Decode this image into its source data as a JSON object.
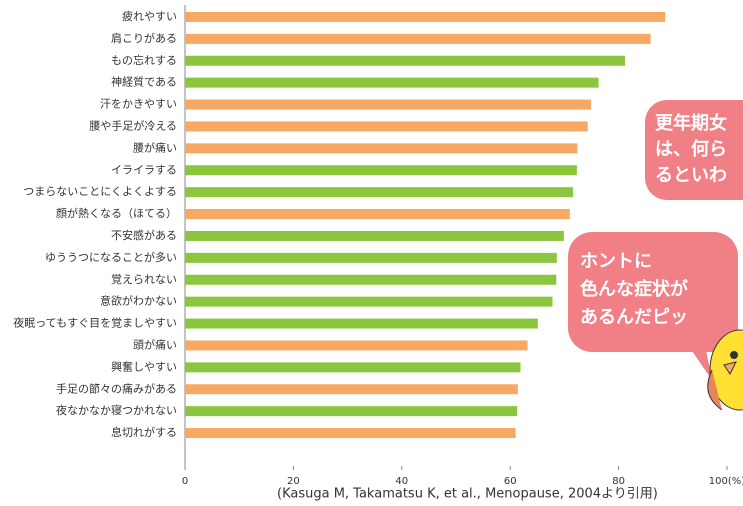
{
  "chart_data": {
    "type": "bar",
    "orientation": "horizontal",
    "categories": [
      "疲れやすい",
      "肩こりがある",
      "もの忘れする",
      "神経質である",
      "汗をかきやすい",
      "腰や手足が冷える",
      "腰が痛い",
      "イライラする",
      "つまらないことにくよくよする",
      "顔が熱くなる（ほてる）",
      "不安感がある",
      "ゆううつになることが多い",
      "覚えられない",
      "意欲がわかない",
      "夜眠ってもすぐ目を覚ましやすい",
      "頭が痛い",
      "興奮しやすい",
      "手足の節々の痛みがある",
      "夜なかなか寝つかれない",
      "息切れがする"
    ],
    "values": [
      88.6,
      85.9,
      81.2,
      76.3,
      74.9,
      74.3,
      72.4,
      72.3,
      71.6,
      71.0,
      69.9,
      68.6,
      68.5,
      67.8,
      65.1,
      63.2,
      61.9,
      61.4,
      61.3,
      61.0
    ],
    "colors": [
      "#f7a862",
      "#f7a862",
      "#8cc63f",
      "#8cc63f",
      "#f7a862",
      "#f7a862",
      "#f7a862",
      "#8cc63f",
      "#8cc63f",
      "#f7a862",
      "#8cc63f",
      "#8cc63f",
      "#8cc63f",
      "#8cc63f",
      "#8cc63f",
      "#f7a862",
      "#8cc63f",
      "#f7a862",
      "#8cc63f",
      "#f7a862"
    ],
    "xlim": [
      0,
      100
    ],
    "xticks": [
      0,
      20,
      40,
      60,
      80,
      {
        "value": 100,
        "label": "100(%)"
      }
    ],
    "source": "(Kasuga M, Takamatsu K, et al., Menopause, 2004より引用)",
    "bubbles": [
      [
        "更年期女",
        "は、何ら",
        "るといわ"
      ],
      [
        "ホントに",
        "色んな症状が",
        "あるんだピッ"
      ]
    ]
  }
}
